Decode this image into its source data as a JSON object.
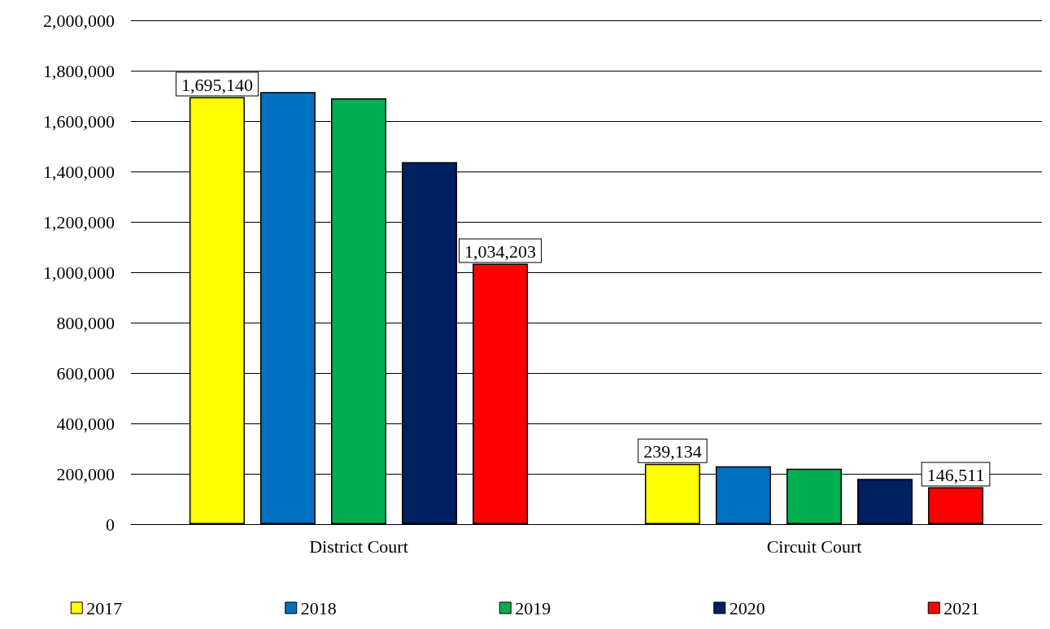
{
  "chart_data": {
    "type": "bar",
    "categories": [
      "District Court",
      "Circuit Court"
    ],
    "series": [
      {
        "name": "2017",
        "color": "#ffff00",
        "values": [
          1695140,
          239134
        ],
        "value_labels": [
          "1,695,140",
          "239,134"
        ]
      },
      {
        "name": "2018",
        "color": "#0070c0",
        "values": [
          1715000,
          230000
        ],
        "value_labels": [
          null,
          null
        ]
      },
      {
        "name": "2019",
        "color": "#00b050",
        "values": [
          1690000,
          220000
        ],
        "value_labels": [
          null,
          null
        ]
      },
      {
        "name": "2020",
        "color": "#002060",
        "values": [
          1437000,
          180000
        ],
        "value_labels": [
          null,
          null
        ]
      },
      {
        "name": "2021",
        "color": "#ff0000",
        "values": [
          1034203,
          146511
        ],
        "value_labels": [
          "1,034,203",
          "146,511"
        ]
      }
    ],
    "ylim": [
      0,
      2000000
    ],
    "yticks": [
      0,
      {
        "value": 200000,
        "label": "200,000"
      },
      {
        "value": 400000,
        "label": "400,000"
      },
      {
        "value": 600000,
        "label": "600,000"
      },
      {
        "value": 800000,
        "label": "800,000"
      },
      {
        "value": 1000000,
        "label": "1,000,000"
      },
      {
        "value": 1200000,
        "label": "1,200,000"
      },
      {
        "value": 1400000,
        "label": "1,400,000"
      },
      {
        "value": 1600000,
        "label": "1,600,000"
      },
      {
        "value": 1800000,
        "label": "1,800,000"
      },
      {
        "value": 2000000,
        "label": "2,000,000"
      }
    ],
    "grid": "y",
    "legend": "bottom"
  }
}
